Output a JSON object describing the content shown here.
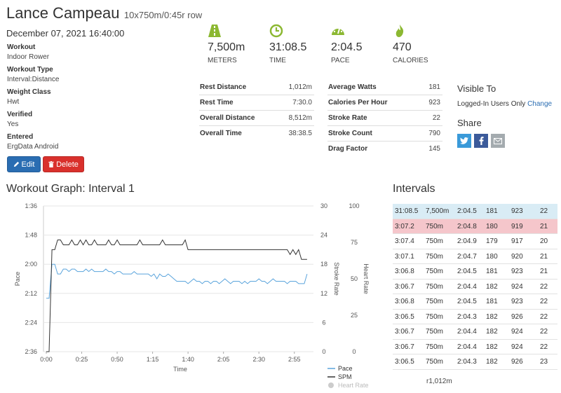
{
  "header": {
    "name": "Lance Campeau",
    "subtitle": "10x750m/0:45r row"
  },
  "datetime": "December 07, 2021 16:40:00",
  "details": [
    {
      "label": "Workout",
      "value": "Indoor Rower"
    },
    {
      "label": "Workout Type",
      "value": "Interval:Distance"
    },
    {
      "label": "Weight Class",
      "value": "Hwt"
    },
    {
      "label": "Verified",
      "value": "Yes"
    },
    {
      "label": "Entered",
      "value": "ErgData Android"
    }
  ],
  "buttons": {
    "edit": "Edit",
    "delete": "Delete"
  },
  "stats": [
    {
      "icon": "road-icon",
      "value": "7,500m",
      "label": "METERS"
    },
    {
      "icon": "clock-icon",
      "value": "31:08.5",
      "label": "TIME"
    },
    {
      "icon": "speedometer-icon",
      "value": "2:04.5",
      "label": "PACE"
    },
    {
      "icon": "flame-icon",
      "value": "470",
      "label": "CALORIES"
    }
  ],
  "table_left": [
    {
      "label": "Rest Distance",
      "value": "1,012m"
    },
    {
      "label": "Rest Time",
      "value": "7:30.0"
    },
    {
      "label": "Overall Distance",
      "value": "8,512m"
    },
    {
      "label": "Overall Time",
      "value": "38:38.5"
    }
  ],
  "table_right": [
    {
      "label": "Average Watts",
      "value": "181"
    },
    {
      "label": "Calories Per Hour",
      "value": "923"
    },
    {
      "label": "Stroke Rate",
      "value": "22"
    },
    {
      "label": "Stroke Count",
      "value": "790"
    },
    {
      "label": "Drag Factor",
      "value": "145"
    }
  ],
  "visibility": {
    "title": "Visible To",
    "text": "Logged-In Users Only",
    "change": "Change"
  },
  "share": {
    "title": "Share",
    "icons": [
      "twitter-icon",
      "facebook-icon",
      "email-icon"
    ]
  },
  "graph": {
    "title": "Workout Graph: Interval 1"
  },
  "intervals": {
    "title": "Intervals",
    "rows": [
      [
        "31:08.5",
        "7,500m",
        "2:04.5",
        "181",
        "923",
        "22"
      ],
      [
        "3:07.2",
        "750m",
        "2:04.8",
        "180",
        "919",
        "21"
      ],
      [
        "3:07.4",
        "750m",
        "2:04.9",
        "179",
        "917",
        "20"
      ],
      [
        "3:07.1",
        "750m",
        "2:04.7",
        "180",
        "920",
        "21"
      ],
      [
        "3:06.8",
        "750m",
        "2:04.5",
        "181",
        "923",
        "21"
      ],
      [
        "3:06.7",
        "750m",
        "2:04.4",
        "182",
        "924",
        "22"
      ],
      [
        "3:06.8",
        "750m",
        "2:04.5",
        "181",
        "923",
        "22"
      ],
      [
        "3:06.5",
        "750m",
        "2:04.3",
        "182",
        "926",
        "22"
      ],
      [
        "3:06.7",
        "750m",
        "2:04.4",
        "182",
        "924",
        "22"
      ],
      [
        "3:06.7",
        "750m",
        "2:04.4",
        "182",
        "924",
        "22"
      ],
      [
        "3:06.5",
        "750m",
        "2:04.3",
        "182",
        "926",
        "23"
      ]
    ],
    "row_colors": [
      "#d9ecf5",
      "#f5c6cb"
    ],
    "total": "r1,012m"
  },
  "colors": {
    "accent_green": "#8cb832",
    "pace": "#5aa4dc",
    "spm": "#333333",
    "heart": "#cccccc"
  },
  "chart_data": {
    "type": "line",
    "x_label": "Time",
    "x_ticks": [
      "0:00",
      "0:25",
      "0:50",
      "1:15",
      "1:40",
      "2:05",
      "2:30",
      "2:55"
    ],
    "x_tick_seconds": [
      0,
      25,
      50,
      75,
      100,
      125,
      150,
      175
    ],
    "xlim": [
      0,
      187
    ],
    "left_axis": {
      "label": "Pace",
      "ticks": [
        "1:36",
        "1:48",
        "2:00",
        "2:12",
        "2:24",
        "2:36"
      ],
      "tick_seconds": [
        96,
        108,
        120,
        132,
        144,
        156
      ],
      "ylim_seconds": [
        96,
        156
      ],
      "inverted": true
    },
    "stroke_axis": {
      "label": "Stroke Rate",
      "ticks": [
        "30",
        "24",
        "18",
        "12",
        "6",
        "0"
      ],
      "ylim": [
        0,
        30
      ]
    },
    "heart_axis": {
      "label": "Heart Rate",
      "ticks": [
        "100",
        "75",
        "50",
        "25",
        "0"
      ],
      "ylim": [
        0,
        100
      ]
    },
    "legend": [
      "Pace",
      "SPM",
      "Heart Rate"
    ],
    "series": [
      {
        "name": "Pace",
        "x": [
          0,
          2,
          4,
          6,
          8,
          10,
          12,
          14,
          16,
          18,
          20,
          22,
          24,
          26,
          28,
          30,
          32,
          34,
          36,
          38,
          40,
          42,
          44,
          46,
          48,
          50,
          52,
          54,
          56,
          58,
          60,
          62,
          64,
          66,
          68,
          70,
          72,
          74,
          76,
          78,
          80,
          82,
          84,
          86,
          88,
          90,
          92,
          94,
          96,
          98,
          100,
          102,
          104,
          106,
          108,
          110,
          112,
          114,
          116,
          118,
          120,
          122,
          124,
          126,
          128,
          130,
          132,
          134,
          136,
          138,
          140,
          142,
          144,
          146,
          148,
          150,
          152,
          154,
          156,
          158,
          160,
          162,
          164,
          166,
          168,
          170,
          172,
          174,
          176,
          178,
          180,
          182,
          184
        ],
        "values": [
          134,
          134,
          120,
          120,
          124,
          124,
          122,
          122,
          123,
          122,
          122,
          123,
          123,
          123,
          122,
          123,
          122,
          123,
          123,
          123,
          123,
          122,
          123,
          123,
          124,
          123,
          123,
          124,
          124,
          124,
          124,
          123,
          124,
          124,
          124,
          124,
          124,
          125,
          124,
          126,
          124,
          125,
          125,
          124,
          125,
          126,
          127,
          127,
          127,
          127,
          128,
          127,
          126,
          127,
          127,
          128,
          127,
          127,
          128,
          127,
          127,
          128,
          127,
          126,
          127,
          128,
          127,
          127,
          127,
          128,
          127,
          128,
          127,
          127,
          127,
          126,
          127,
          127,
          128,
          127,
          126,
          127,
          127,
          127,
          127,
          128,
          127,
          127,
          127,
          128,
          128,
          128,
          124
        ]
      },
      {
        "name": "SPM",
        "x": [
          0,
          2,
          4,
          6,
          8,
          10,
          12,
          14,
          16,
          18,
          20,
          22,
          24,
          26,
          28,
          30,
          32,
          34,
          36,
          38,
          40,
          42,
          44,
          46,
          48,
          50,
          52,
          54,
          56,
          58,
          60,
          62,
          64,
          66,
          68,
          70,
          72,
          74,
          76,
          78,
          80,
          82,
          84,
          86,
          88,
          90,
          92,
          94,
          96,
          98,
          100,
          102,
          104,
          106,
          108,
          110,
          112,
          114,
          116,
          118,
          120,
          122,
          124,
          126,
          128,
          130,
          132,
          134,
          136,
          138,
          140,
          142,
          144,
          146,
          148,
          150,
          152,
          154,
          156,
          158,
          160,
          162,
          164,
          166,
          168,
          170,
          172,
          174,
          176,
          178,
          180,
          182,
          184
        ],
        "values": [
          0,
          0,
          21,
          21,
          23,
          23,
          22,
          22,
          22,
          23,
          22,
          22,
          23,
          22,
          23,
          22,
          22,
          23,
          22,
          22,
          22,
          22,
          23,
          22,
          22,
          23,
          22,
          22,
          22,
          22,
          22,
          22,
          22,
          23,
          22,
          22,
          22,
          22,
          22,
          22,
          22,
          23,
          22,
          22,
          22,
          22,
          22,
          22,
          22,
          23,
          21,
          21,
          21,
          21,
          21,
          21,
          21,
          21,
          21,
          21,
          21,
          21,
          21,
          21,
          21,
          21,
          21,
          21,
          21,
          21,
          21,
          21,
          21,
          21,
          21,
          21,
          21,
          21,
          21,
          21,
          21,
          21,
          21,
          21,
          21,
          21,
          20,
          21,
          20,
          21,
          19,
          19,
          19
        ]
      }
    ]
  }
}
